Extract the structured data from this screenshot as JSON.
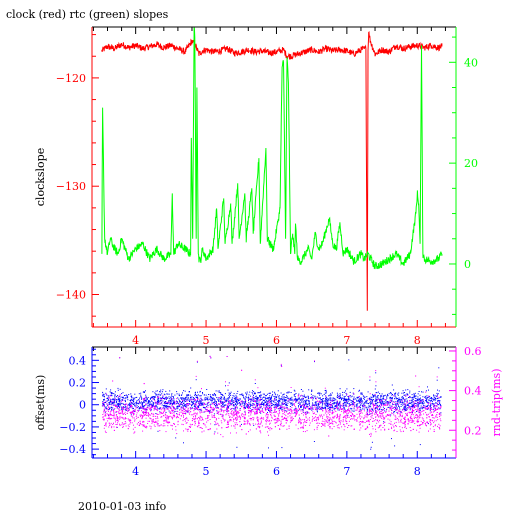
{
  "title": "clock (red) rtc (green) slopes",
  "footer": "2010-01-03 info",
  "colors": {
    "red": "#ff0000",
    "green": "#00ff00",
    "blue": "#0000ff",
    "magenta": "#ff00ff",
    "frame": "#000000"
  },
  "chart_data": [
    {
      "type": "line",
      "title": "clock (red) rtc (green) slopes",
      "xlim": [
        3.38,
        8.55
      ],
      "x_ticks": [
        4,
        5,
        6,
        7,
        8
      ],
      "y_left": {
        "label": "clockslope",
        "lim": [
          -143.0,
          -115.3
        ],
        "ticks": [
          -140,
          -130,
          -120
        ]
      },
      "y_right": {
        "label": "",
        "lim": [
          -12.5,
          47.0
        ],
        "ticks": [
          0,
          20,
          40
        ]
      },
      "series": [
        {
          "axis": "left",
          "color": "red",
          "x": [
            3.52,
            3.6,
            3.7,
            3.8,
            3.9,
            4.0,
            4.1,
            4.2,
            4.3,
            4.4,
            4.5,
            4.6,
            4.7,
            4.8,
            4.85,
            4.9,
            4.95,
            5.0,
            5.1,
            5.2,
            5.3,
            5.4,
            5.5,
            5.6,
            5.7,
            5.8,
            5.9,
            6.0,
            6.1,
            6.15,
            6.2,
            6.3,
            6.4,
            6.5,
            6.6,
            6.7,
            6.8,
            6.9,
            7.0,
            7.1,
            7.2,
            7.27,
            7.29,
            7.3,
            7.31,
            7.33,
            7.4,
            7.5,
            7.6,
            7.7,
            7.8,
            7.9,
            8.0,
            8.1,
            8.2,
            8.3,
            8.35
          ],
          "y": [
            -117.5,
            -117.1,
            -117.3,
            -116.9,
            -117.2,
            -117.0,
            -117.3,
            -117.1,
            -116.9,
            -117.2,
            -117.0,
            -117.3,
            -117.6,
            -116.6,
            -117.0,
            -117.8,
            -117.5,
            -117.4,
            -117.6,
            -117.5,
            -117.3,
            -117.7,
            -117.6,
            -117.4,
            -117.6,
            -117.5,
            -117.7,
            -117.6,
            -117.4,
            -118.0,
            -118.0,
            -117.8,
            -117.6,
            -117.4,
            -117.6,
            -117.3,
            -117.5,
            -117.4,
            -117.5,
            -117.8,
            -117.4,
            -117.3,
            -141.5,
            -117.5,
            -115.8,
            -116.5,
            -117.8,
            -117.4,
            -117.6,
            -117.0,
            -117.3,
            -117.1,
            -117.0,
            -117.2,
            -117.0,
            -117.2,
            -117.1
          ]
        },
        {
          "axis": "right",
          "color": "green",
          "x": [
            3.52,
            3.53,
            3.56,
            3.6,
            3.64,
            3.7,
            3.75,
            3.8,
            3.9,
            4.0,
            4.1,
            4.2,
            4.3,
            4.4,
            4.5,
            4.52,
            4.54,
            4.6,
            4.7,
            4.78,
            4.79,
            4.81,
            4.83,
            4.84,
            4.86,
            4.87,
            4.89,
            4.9,
            4.92,
            4.95,
            5.0,
            5.1,
            5.15,
            5.17,
            5.25,
            5.27,
            5.35,
            5.37,
            5.45,
            5.47,
            5.55,
            5.57,
            5.65,
            5.67,
            5.75,
            5.77,
            5.85,
            5.87,
            5.95,
            5.97,
            6.05,
            6.08,
            6.1,
            6.13,
            6.15,
            6.17,
            6.2,
            6.23,
            6.26,
            6.27,
            6.3,
            6.35,
            6.45,
            6.5,
            6.55,
            6.6,
            6.65,
            6.75,
            6.8,
            6.85,
            6.9,
            6.95,
            7.0,
            7.1,
            7.2,
            7.25,
            7.3,
            7.4,
            7.5,
            7.6,
            7.7,
            7.8,
            7.9,
            7.98,
            8.0,
            8.02,
            8.04,
            8.06,
            8.08,
            8.1,
            8.2,
            8.3,
            8.35
          ],
          "y": [
            2,
            31,
            5,
            2,
            5,
            3,
            2,
            5,
            1,
            3,
            4,
            1,
            3,
            1,
            2,
            14,
            2,
            4,
            3,
            2,
            25,
            5,
            47,
            45,
            5,
            35,
            2,
            1,
            0.5,
            3,
            1,
            3,
            11,
            3,
            13,
            4,
            12,
            4,
            16,
            5,
            14,
            5,
            15,
            6,
            21,
            4,
            23,
            5,
            3,
            4,
            11,
            39,
            40,
            5,
            41,
            36,
            2,
            6,
            2,
            8,
            1,
            0.5,
            3,
            1,
            6,
            3,
            4,
            9,
            4,
            3,
            8,
            2,
            3,
            0.5,
            2,
            1,
            2,
            -0.5,
            0,
            1,
            2,
            0,
            2,
            10,
            14,
            12,
            4,
            43,
            2,
            1,
            0.5,
            1,
            2
          ]
        }
      ]
    },
    {
      "type": "scatter",
      "title": "",
      "xlim": [
        3.38,
        8.55
      ],
      "x_ticks": [
        4,
        5,
        6,
        7,
        8
      ],
      "y_left": {
        "label": "offset(ms)",
        "lim": [
          -0.48,
          0.52
        ],
        "ticks": [
          -0.4,
          -0.2,
          0,
          0.2,
          0.4
        ],
        "tick_labels": [
          "−0.4",
          "−0.2",
          "0",
          "0.2",
          "0.4"
        ]
      },
      "y_right": {
        "label": "rnd-trip(ms)",
        "lim": [
          0.06,
          0.62
        ],
        "ticks": [
          0.2,
          0.4,
          0.6
        ]
      },
      "series": [
        {
          "axis": "left",
          "color": "blue",
          "x_range": [
            3.52,
            8.33
          ],
          "y_center": 0.03,
          "y_spread": 0.09,
          "outliers_to": [
            -0.42,
            0.45
          ]
        },
        {
          "axis": "right",
          "color": "magenta",
          "x_range": [
            3.52,
            8.33
          ],
          "y_center": 0.28,
          "y_spread": 0.08,
          "outliers_to": [
            0.16,
            0.58
          ]
        }
      ]
    }
  ]
}
